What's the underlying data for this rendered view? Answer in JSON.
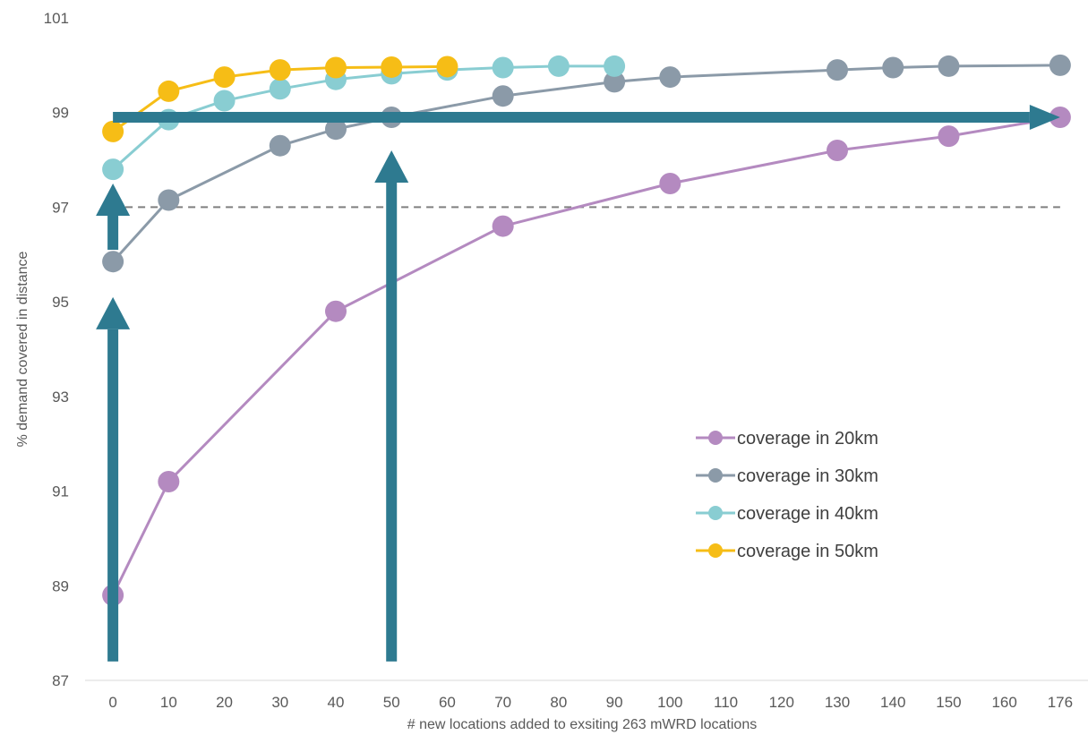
{
  "chart_data": {
    "type": "line",
    "title": "",
    "xlabel": "# new locations added to exsiting 263 mWRD locations",
    "ylabel": "% demand covered in distance",
    "categories": [
      "0",
      "10",
      "20",
      "30",
      "40",
      "50",
      "60",
      "70",
      "80",
      "90",
      "100",
      "110",
      "120",
      "130",
      "140",
      "150",
      "160",
      "176"
    ],
    "ylim": [
      87,
      101
    ],
    "yticks": [
      87,
      89,
      91,
      93,
      95,
      97,
      99,
      101
    ],
    "grid": false,
    "legend_position": "right",
    "reference_line": {
      "y": 97,
      "style": "dashed",
      "color": "#7f7f7f"
    },
    "series": [
      {
        "name": "coverage in 20km",
        "color": "#b48ac0",
        "points": [
          [
            0,
            88.8
          ],
          [
            10,
            91.2
          ],
          [
            40,
            94.8
          ],
          [
            70,
            96.6
          ],
          [
            100,
            97.5
          ],
          [
            130,
            98.2
          ],
          [
            150,
            98.5
          ],
          [
            176,
            98.9
          ]
        ]
      },
      {
        "name": "coverage in 30km",
        "color": "#8b9aa8",
        "points": [
          [
            0,
            95.85
          ],
          [
            10,
            97.15
          ],
          [
            30,
            98.3
          ],
          [
            40,
            98.65
          ],
          [
            50,
            98.9
          ],
          [
            70,
            99.35
          ],
          [
            90,
            99.65
          ],
          [
            100,
            99.75
          ],
          [
            130,
            99.9
          ],
          [
            140,
            99.95
          ],
          [
            150,
            99.98
          ],
          [
            176,
            100.0
          ]
        ]
      },
      {
        "name": "coverage in 40km",
        "color": "#89cdd2",
        "points": [
          [
            0,
            97.8
          ],
          [
            10,
            98.85
          ],
          [
            20,
            99.25
          ],
          [
            30,
            99.5
          ],
          [
            40,
            99.7
          ],
          [
            50,
            99.82
          ],
          [
            60,
            99.9
          ],
          [
            70,
            99.95
          ],
          [
            80,
            99.98
          ],
          [
            90,
            99.98
          ]
        ]
      },
      {
        "name": "coverage in 50km",
        "color": "#f6bd16",
        "points": [
          [
            0,
            98.6
          ],
          [
            10,
            99.45
          ],
          [
            20,
            99.75
          ],
          [
            30,
            99.9
          ],
          [
            40,
            99.95
          ],
          [
            50,
            99.96
          ],
          [
            60,
            99.97
          ]
        ]
      }
    ],
    "arrows": [
      {
        "direction": "up",
        "x": 0,
        "from": 87.4,
        "to": 95.1
      },
      {
        "direction": "up",
        "x": 0,
        "from": 96.1,
        "to": 97.5
      },
      {
        "direction": "up",
        "x": 50,
        "from": 87.4,
        "to": 98.2
      },
      {
        "direction": "right",
        "y": 98.9,
        "from": 0,
        "to": 176
      }
    ],
    "arrow_color": "#2e7a90"
  }
}
